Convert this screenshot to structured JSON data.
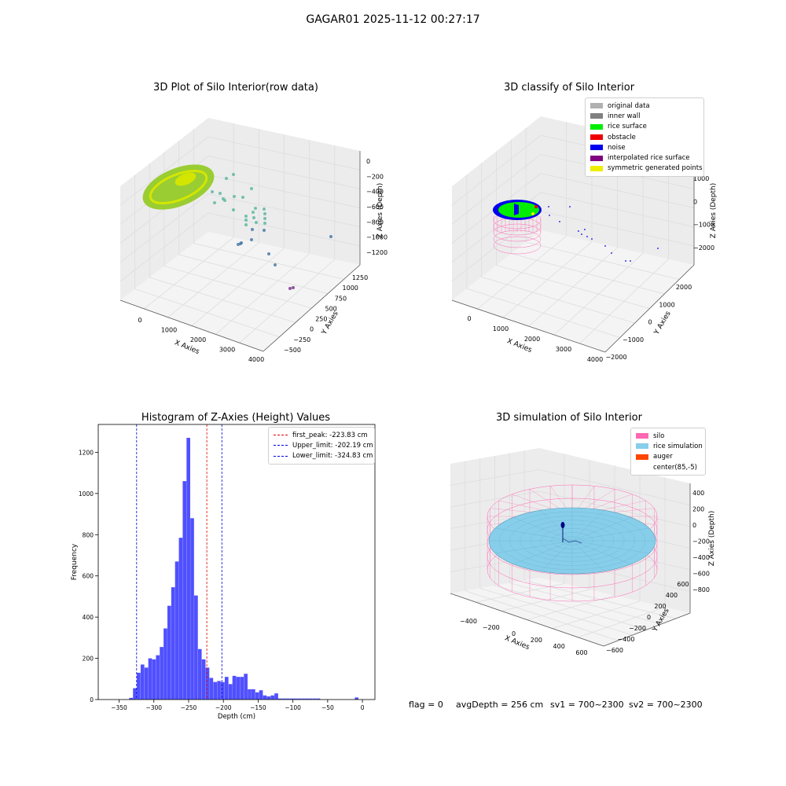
{
  "figure": {
    "suptitle": "GAGAR01 2025-11-12 00:27:17",
    "footer": {
      "flag": "flag = 0",
      "avg_depth": "avgDepth = 256 cm",
      "sv1": "sv1 = 700~2300",
      "sv2": "sv2 = 700~2300"
    }
  },
  "chart_data": [
    {
      "id": "raw3d",
      "type": "scatter",
      "title": "3D Plot of Silo Interior(row data)",
      "xlabel": "X Axies",
      "ylabel": "Y Axies",
      "zlabel": "Z Axies (Depth)",
      "x_ticks": [
        "0",
        "1000",
        "2000",
        "3000",
        "4000"
      ],
      "y_ticks": [
        "1250",
        "1000",
        "750",
        "500",
        "250",
        "0",
        "−250",
        "−500"
      ],
      "z_ticks": [
        "0",
        "−200",
        "−400",
        "−600",
        "−800",
        "−1000",
        "−1200"
      ],
      "colors": {
        "surface": "#9acd32",
        "surface_hi": "#d4e600",
        "mid": "#5fb8a0",
        "deep": "#4a7aa8",
        "deepest": "#7a3a8a"
      }
    },
    {
      "id": "classify3d",
      "type": "scatter",
      "title": "3D classify of Silo Interior",
      "xlabel": "X Axies",
      "ylabel": "Y Axies",
      "zlabel": "Z Axies (Depth)",
      "x_ticks": [
        "0",
        "1000",
        "2000",
        "3000",
        "4000"
      ],
      "y_ticks": [
        "2000",
        "1000",
        "0",
        "−1000",
        "−2000"
      ],
      "z_ticks": [
        "1000",
        "0",
        "−1000",
        "−2000"
      ],
      "legend": [
        {
          "label": "original data",
          "color": "#b0b0b0"
        },
        {
          "label": "inner wall",
          "color": "#808080"
        },
        {
          "label": "rice surface",
          "color": "#00ee00"
        },
        {
          "label": "obstacle",
          "color": "#ee0000"
        },
        {
          "label": "noise",
          "color": "#0000ee"
        },
        {
          "label": "interpolated rice surface",
          "color": "#800080"
        },
        {
          "label": "symmetric generated points",
          "color": "#eeee00"
        }
      ]
    },
    {
      "id": "histogram",
      "type": "bar",
      "title": "Histogram of Z-Axies (Height) Values",
      "xlabel": "Depth (cm)",
      "ylabel": "Frequency",
      "xlim": [
        -380,
        18
      ],
      "ylim": [
        0,
        1335
      ],
      "x_ticks": [
        -350,
        -300,
        -250,
        -200,
        -150,
        -100,
        -50,
        0
      ],
      "x_tick_labels": [
        "−350",
        "−300",
        "−250",
        "−200",
        "−150",
        "−100",
        "−50",
        "0"
      ],
      "y_ticks": [
        0,
        200,
        400,
        600,
        800,
        1000,
        1200
      ],
      "bar_color": "#5050ff",
      "bin_width": 5.5,
      "bin_starts": [
        -335.5,
        -330,
        -324.5,
        -319,
        -313.5,
        -308,
        -302.5,
        -297,
        -291.5,
        -286,
        -280.5,
        -275,
        -269.5,
        -264,
        -258.5,
        -253,
        -247.5,
        -242,
        -236.5,
        -231,
        -225.5,
        -220,
        -214.5,
        -209,
        -203.5,
        -198,
        -192.5,
        -187,
        -181.5,
        -176,
        -170.5,
        -165,
        -159.5,
        -154,
        -148.5,
        -143,
        -137.5,
        -132,
        -126.5,
        -121,
        -115.5,
        -110,
        -104.5,
        -99,
        -93.5,
        -88,
        -82.5,
        -77,
        -71.5,
        -66,
        -60.5,
        -55,
        -49.5,
        -44,
        -38.5,
        -33,
        -27.5,
        -22,
        -16.5,
        -11,
        -5.5,
        0
      ],
      "counts": [
        8,
        55,
        130,
        170,
        155,
        200,
        195,
        215,
        255,
        345,
        455,
        545,
        670,
        785,
        1060,
        1270,
        880,
        505,
        245,
        195,
        155,
        105,
        85,
        90,
        85,
        110,
        75,
        115,
        110,
        110,
        125,
        50,
        50,
        35,
        45,
        20,
        15,
        20,
        30,
        5,
        5,
        5,
        5,
        5,
        5,
        5,
        5,
        5,
        5,
        5,
        0,
        0,
        0,
        0,
        0,
        0,
        0,
        0,
        0,
        10,
        0,
        0
      ],
      "lines": [
        {
          "label": "first_peak: -223.83 cm",
          "x": -223.83,
          "color": "#dd0000"
        },
        {
          "label": "Upper_limit: -202.19 cm",
          "x": -202.19,
          "color": "#0000dd"
        },
        {
          "label": "Lower_limit: -324.83 cm",
          "x": -324.83,
          "color": "#0000dd"
        }
      ]
    },
    {
      "id": "simulation3d",
      "type": "scatter",
      "title": "3D simulation of Silo Interior",
      "xlabel": "X Axies",
      "ylabel": "Y Axies",
      "zlabel": "Z Axies (Depth)",
      "x_ticks": [
        "−400",
        "−200",
        "0",
        "200",
        "400",
        "600"
      ],
      "y_ticks": [
        "600",
        "400",
        "200",
        "0",
        "−200",
        "−400",
        "−600"
      ],
      "z_ticks": [
        "400",
        "200",
        "0",
        "−200",
        "−400",
        "−600",
        "−800"
      ],
      "legend": [
        {
          "label": "silo",
          "color": "#ff69b4"
        },
        {
          "label": "rice simulation",
          "color": "#87ceeb"
        },
        {
          "label": "auger",
          "color": "#ff4500"
        },
        {
          "label": "center(85,-5)",
          "color": "#ffffff"
        }
      ]
    }
  ]
}
